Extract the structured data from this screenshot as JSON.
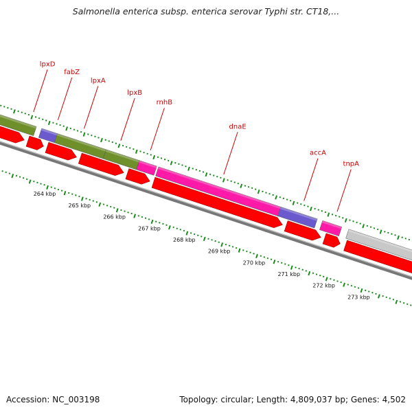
{
  "title": "Salmonella enterica subsp. enterica serovar Typhi str. CT18,...",
  "accession_text": "Accession: NC_003198",
  "summary_text": "Topology: circular; Length: 4,809,037 bp; Genes: 4,502",
  "colors": {
    "cds": "#ff0000",
    "label": "#cc0000",
    "tick": "#1a8a1a",
    "green_class": "#6f8f2a",
    "purple_class": "#6a5acd",
    "pink_class": "#ff1aa8",
    "gray_class": "#c8c8c8",
    "backbone": "#777777"
  },
  "ticks": [
    {
      "kb": 264,
      "label": "264 kbp"
    },
    {
      "kb": 265,
      "label": "265 kbp"
    },
    {
      "kb": 266,
      "label": "266 kbp"
    },
    {
      "kb": 267,
      "label": "267 kbp"
    },
    {
      "kb": 268,
      "label": "268 kbp"
    },
    {
      "kb": 269,
      "label": "269 kbp"
    },
    {
      "kb": 270,
      "label": "270 kbp"
    },
    {
      "kb": 271,
      "label": "271 kbp"
    },
    {
      "kb": 272,
      "label": "272 kbp"
    },
    {
      "kb": 273,
      "label": "273 kbp"
    }
  ],
  "functional_blocks": [
    {
      "start": 261.9,
      "end": 263.2,
      "color": "green_class"
    },
    {
      "start": 263.35,
      "end": 263.8,
      "color": "purple_class"
    },
    {
      "start": 263.8,
      "end": 265.2,
      "color": "green_class"
    },
    {
      "start": 265.2,
      "end": 266.15,
      "color": "green_class"
    },
    {
      "start": 266.15,
      "end": 266.65,
      "color": "pink_class"
    },
    {
      "start": 266.7,
      "end": 270.2,
      "color": "pink_class"
    },
    {
      "start": 270.2,
      "end": 271.25,
      "color": "purple_class"
    },
    {
      "start": 271.4,
      "end": 271.95,
      "color": "pink_class"
    },
    {
      "start": 272.15,
      "end": 275.0,
      "color": "gray_class"
    }
  ],
  "cds_features": [
    {
      "start": 262.0,
      "end": 263.0
    },
    {
      "start": 263.1,
      "end": 263.55
    },
    {
      "start": 263.65,
      "end": 264.5
    },
    {
      "start": 264.6,
      "end": 265.85
    },
    {
      "start": 265.95,
      "end": 266.6
    },
    {
      "start": 266.7,
      "end": 270.4
    },
    {
      "start": 270.5,
      "end": 271.5
    },
    {
      "start": 271.6,
      "end": 272.05
    },
    {
      "start": 272.2,
      "end": 274.4
    }
  ],
  "gene_labels": [
    {
      "name": "lpxD",
      "kb": 263.0
    },
    {
      "name": "fabZ",
      "kb": 263.7
    },
    {
      "name": "lpxA",
      "kb": 264.45
    },
    {
      "name": "lpxB",
      "kb": 265.5
    },
    {
      "name": "rnhB",
      "kb": 266.35
    },
    {
      "name": "dnaE",
      "kb": 268.45
    },
    {
      "name": "accA",
      "kb": 270.75
    },
    {
      "name": "tnpA",
      "kb": 271.7
    }
  ]
}
